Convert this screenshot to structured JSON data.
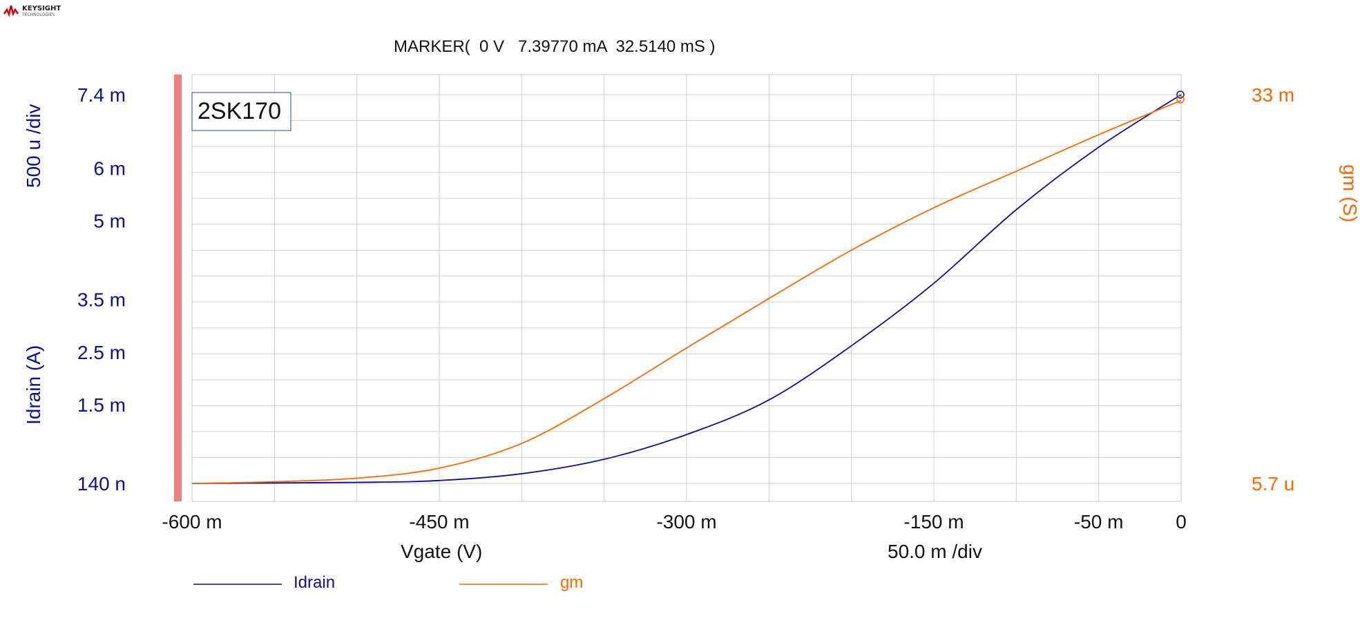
{
  "brand": {
    "name": "KEYSIGHT",
    "sub": "TECHNOLOGIES"
  },
  "marker": {
    "text": "MARKER(  0 V   7.39770 mA  32.5140 mS )"
  },
  "colors": {
    "idrain": "#0d0d9c",
    "gm": "#ff6600",
    "grid": "#cfcfcf",
    "scroll_bar": "#f08080"
  },
  "chart_data": {
    "type": "line",
    "title": "2SK170",
    "xlabel": "Vgate (V)",
    "x_div_label": "50.0 m /div",
    "xlim": [
      -0.6,
      0.0
    ],
    "x_ticks": [
      {
        "value": -0.6,
        "label": "-600 m"
      },
      {
        "value": -0.45,
        "label": "-450 m"
      },
      {
        "value": -0.3,
        "label": "-300 m"
      },
      {
        "value": -0.15,
        "label": "-150 m"
      },
      {
        "value": -0.05,
        "label": "-50 m"
      },
      {
        "value": 0.0,
        "label": "0"
      }
    ],
    "y_left": {
      "label": "Idrain (A)",
      "div_label": "500 u /div",
      "ylim": [
        1.4e-07,
        0.0074
      ],
      "ticks": [
        {
          "value": 0.0074,
          "label": "7.4 m"
        },
        {
          "value": 0.006,
          "label": "6 m"
        },
        {
          "value": 0.005,
          "label": "5 m"
        },
        {
          "value": 0.0035,
          "label": "3.5 m"
        },
        {
          "value": 0.0025,
          "label": "2.5 m"
        },
        {
          "value": 0.0015,
          "label": "1.5 m"
        },
        {
          "value": 1.4e-07,
          "label": "140 n"
        }
      ]
    },
    "y_right": {
      "label": "gm (S)",
      "ylim": [
        5.7e-06,
        0.033
      ],
      "ticks": [
        {
          "value": 0.033,
          "label": "33 m"
        },
        {
          "value": 5.7e-06,
          "label": "5.7 u"
        }
      ]
    },
    "series": [
      {
        "name": "Idrain",
        "axis": "left",
        "x": [
          -0.6,
          -0.5,
          -0.45,
          -0.4,
          -0.35,
          -0.3,
          -0.25,
          -0.2,
          -0.15,
          -0.1,
          -0.05,
          0.0
        ],
        "values": [
          1.4e-07,
          2e-05,
          5.55e-05,
          0.000185,
          0.00046,
          0.00093,
          0.00159,
          0.00262,
          0.00381,
          0.00521,
          0.0064,
          0.0074
        ]
      },
      {
        "name": "gm",
        "axis": "right",
        "x": [
          -0.6,
          -0.55,
          -0.5,
          -0.45,
          -0.4,
          -0.35,
          -0.3,
          -0.25,
          -0.2,
          -0.15,
          -0.1,
          -0.05,
          0.0
        ],
        "values": [
          5.7e-06,
          0.00015,
          0.00045,
          0.0013,
          0.0034,
          0.0072,
          0.0115,
          0.0157,
          0.0198,
          0.0234,
          0.0265,
          0.0296,
          0.0325
        ]
      }
    ],
    "grid": true,
    "legend": "bottom-left"
  }
}
